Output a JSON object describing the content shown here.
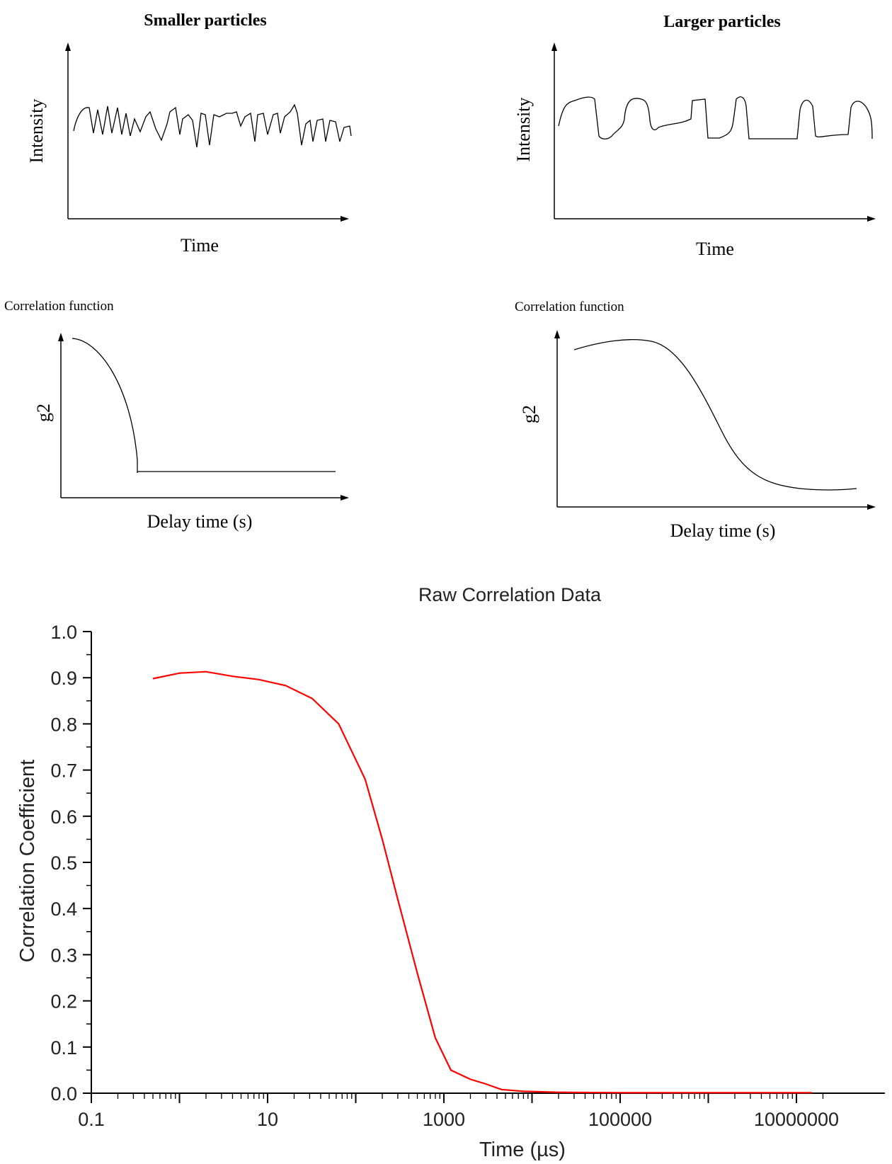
{
  "panels": {
    "smaller": {
      "title": "Smaller particles",
      "intensity_ylabel": "Intensity",
      "intensity_xlabel": "Time",
      "corr_heading": "Correlation function",
      "corr_ylabel": "g2",
      "corr_xlabel": "Delay time (s)"
    },
    "larger": {
      "title": "Larger particles",
      "intensity_ylabel": "Intensity",
      "intensity_xlabel": "Time",
      "corr_heading": "Correlation function",
      "corr_ylabel": "g2",
      "corr_xlabel": "Delay time (s)"
    }
  },
  "chart_data": {
    "type": "line",
    "title": "Raw Correlation Data",
    "xlabel": "Time (µs)",
    "ylabel": "Correlation Coefficient",
    "xscale": "log",
    "xlim": [
      0.1,
      20000000
    ],
    "ylim": [
      0,
      1.0
    ],
    "x_tick_labels": [
      "0.1",
      "10",
      "1000",
      "100000",
      "10000000"
    ],
    "x_tick_values": [
      0.1,
      10,
      1000,
      100000,
      10000000
    ],
    "y_tick_labels": [
      "0.0",
      "0.1",
      "0.2",
      "0.3",
      "0.4",
      "0.5",
      "0.6",
      "0.7",
      "0.8",
      "0.9",
      "1.0"
    ],
    "y_tick_values": [
      0,
      0.1,
      0.2,
      0.3,
      0.4,
      0.5,
      0.6,
      0.7,
      0.8,
      0.9,
      1.0
    ],
    "grid": false,
    "series": [
      {
        "color": "#ff0000",
        "x": [
          0.5,
          1,
          2,
          4,
          8,
          16,
          32,
          64,
          128,
          200,
          300,
          500,
          800,
          1200,
          2000,
          3000,
          4500,
          8000,
          20000,
          100000,
          1000000,
          15000000
        ],
        "y": [
          0.898,
          0.91,
          0.913,
          0.903,
          0.896,
          0.883,
          0.855,
          0.8,
          0.68,
          0.55,
          0.42,
          0.26,
          0.12,
          0.05,
          0.03,
          0.02,
          0.008,
          0.004,
          0.002,
          0.001,
          0.001,
          0.001
        ]
      }
    ]
  }
}
